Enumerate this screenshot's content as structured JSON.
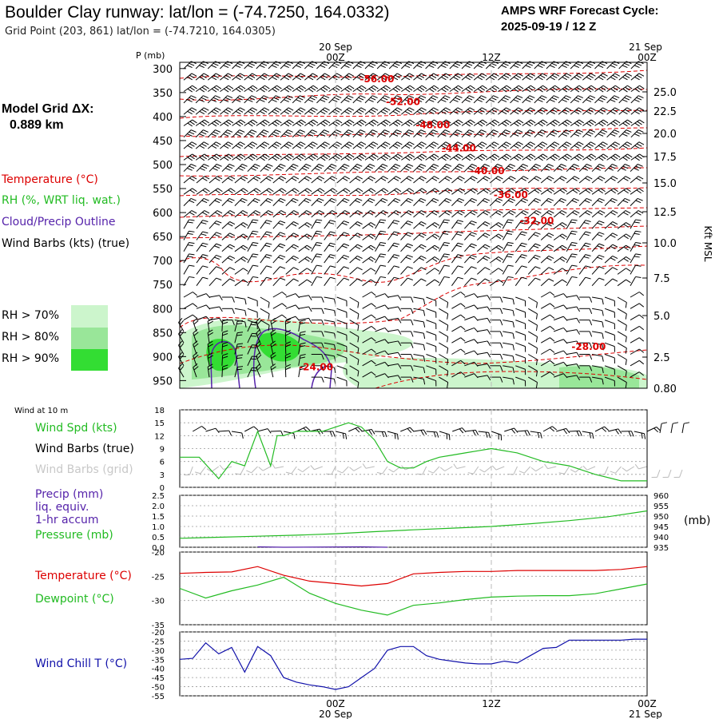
{
  "header": {
    "title": "Boulder Clay runway:  lat/lon = (-74.7250, 164.0332)",
    "subtitle": "Grid Point (203, 861) lat/lon = (-74.7210, 164.0305)",
    "cycle_line1": "AMPS WRF Forecast Cycle:",
    "cycle_line2": "2025-09-19 / 12  Z"
  },
  "legend": {
    "model_grid_label": "Model Grid ΔX:",
    "model_grid_value": "0.889 km",
    "temperature": "Temperature (°C)",
    "rh": "RH (%, WRT liq. wat.)",
    "cloud": "Cloud/Precip Outline",
    "barbs": "Wind Barbs (kts) (true)",
    "rh70": "RH > 70%",
    "rh80": "RH > 80%",
    "rh90": "RH > 90%"
  },
  "colors": {
    "temp": "#dd0000",
    "rh": "#22bb22",
    "cloud": "#5522aa",
    "dew": "#22bb22",
    "chill": "#1111aa",
    "rh70": "#ccf5cc",
    "rh80": "#99e699",
    "rh90": "#33dd33"
  },
  "time_axis": {
    "top_date_left": "20 Sep",
    "top_date_right": "21 Sep",
    "ticks": [
      "00Z",
      "12Z",
      "00Z"
    ],
    "bottom_date_left": "20 Sep",
    "bottom_date_right": "21 Sep"
  },
  "chart_data": [
    {
      "type": "line",
      "name": "cross-section",
      "title": "Time-height cross section",
      "ylabel": "P (mb)",
      "y2label": "Kft MSL",
      "pressure_levels": [
        "300",
        "350",
        "400",
        "450",
        "500",
        "550",
        "600",
        "650",
        "700",
        "750",
        "800",
        "850",
        "900",
        "950"
      ],
      "height_levels": [
        "25.0",
        "22.5",
        "20.0",
        "17.5",
        "15.0",
        "12.5",
        "10.0",
        "7.5",
        "5.0",
        "2.5",
        "0.80"
      ],
      "isotherm_labels": [
        {
          "value": "-56.00",
          "hour": 3.2,
          "p": 320
        },
        {
          "value": "-52.00",
          "hour": 5.2,
          "p": 368
        },
        {
          "value": "-48.00",
          "hour": 7.5,
          "p": 416
        },
        {
          "value": "-44.00",
          "hour": 9.5,
          "p": 464
        },
        {
          "value": "-40.00",
          "hour": 11.7,
          "p": 512
        },
        {
          "value": "-36.00",
          "hour": 13.5,
          "p": 562
        },
        {
          "value": "-32.00",
          "hour": 15.5,
          "p": 616
        },
        {
          "value": "-28.00",
          "hour": 19.5,
          "p": 878
        },
        {
          "value": "-24.00",
          "hour": -1.5,
          "p": 920
        }
      ]
    },
    {
      "type": "line",
      "name": "wind-10m",
      "panel_title": "Wind at 10 m",
      "labels": {
        "speed": "Wind Spd (kts)",
        "barbs_true": "Wind Barbs (true)",
        "barbs_grid": "Wind Barbs (grid)"
      },
      "ylim": [
        0,
        18
      ],
      "yticks": [
        "0",
        "3",
        "6",
        "9",
        "12",
        "15",
        "18"
      ],
      "x_hours": [
        -12,
        -10.5,
        -9,
        -8,
        -7,
        -6,
        -5,
        -4.5,
        -4,
        -3,
        -2,
        -1,
        0,
        1,
        2,
        3,
        4,
        5,
        6,
        7,
        8,
        9,
        10,
        11,
        12,
        14,
        16,
        18,
        20,
        22,
        24
      ],
      "speed": [
        7,
        7,
        2,
        6,
        5,
        13,
        5,
        12,
        12,
        13,
        13,
        13,
        14,
        15,
        14,
        11,
        6,
        4.5,
        4.5,
        6,
        7,
        7.5,
        8,
        8.5,
        9,
        8,
        6,
        5,
        3,
        1.5,
        1.5
      ]
    },
    {
      "type": "line",
      "name": "precip-pressure",
      "labels": {
        "precip": "Precip (mm)",
        "liq": "liq. equiv.",
        "accum": "1-hr accum",
        "pressure": "Pressure (mb)",
        "unit": "(mb)"
      },
      "ylim_precip": [
        0,
        2.5
      ],
      "yticks_precip": [
        "0.0",
        "0.5",
        "1.0",
        "1.5",
        "2.0",
        "2.5"
      ],
      "ylim_pressure": [
        935,
        960
      ],
      "yticks_pressure": [
        "935",
        "940",
        "945",
        "950",
        "955",
        "960"
      ],
      "x_hours": [
        -12,
        -9,
        -6,
        -3,
        0,
        3,
        6,
        9,
        12,
        15,
        18,
        21,
        24
      ],
      "pressure": [
        939.3,
        939.8,
        940.3,
        940.8,
        941.5,
        942.5,
        943.4,
        944.2,
        945.0,
        946.3,
        947.8,
        949.7,
        952.5
      ],
      "precip_x_hours": [
        -6,
        -4,
        2,
        4
      ],
      "precip": [
        0.02,
        0.0,
        0.02,
        0.0
      ]
    },
    {
      "type": "line",
      "name": "temp-dew",
      "labels": {
        "temp": "Temperature (°C)",
        "dew": "Dewpoint (°C)"
      },
      "ylim": [
        -35,
        -20
      ],
      "yticks": [
        "-20",
        "-25",
        "-30",
        "-35"
      ],
      "x_hours": [
        -12,
        -10,
        -8,
        -6,
        -4,
        -2,
        0,
        2,
        4,
        6,
        8,
        10,
        12,
        14,
        16,
        18,
        20,
        22,
        24
      ],
      "temperature": [
        -24.4,
        -24.2,
        -24.1,
        -23.0,
        -24.8,
        -26,
        -26.5,
        -27,
        -26.5,
        -24.5,
        -24.2,
        -24.0,
        -24.0,
        -23.8,
        -23.8,
        -23.8,
        -23.8,
        -23.6,
        -23.0
      ],
      "dewpoint": [
        -27.5,
        -29.5,
        -28,
        -26.8,
        -25.2,
        -28.5,
        -30.6,
        -32,
        -33,
        -31,
        -30.5,
        -29.8,
        -29.3,
        -29.1,
        -29.0,
        -29.0,
        -28.6,
        -27.6,
        -26.6
      ]
    },
    {
      "type": "line",
      "name": "wind-chill",
      "labels": {
        "chill": "Wind Chill T (°C)"
      },
      "ylim": [
        -55,
        -20
      ],
      "yticks": [
        "-20",
        "-25",
        "-30",
        "-35",
        "-40",
        "-45",
        "-50",
        "-55"
      ],
      "x_hours": [
        -12,
        -11,
        -10,
        -9,
        -8,
        -7,
        -6,
        -5,
        -4,
        -3,
        -2,
        -1,
        0,
        1,
        2,
        3,
        4,
        5,
        6,
        7,
        8,
        9,
        10,
        11,
        12,
        13,
        14,
        15,
        16,
        17,
        18,
        19,
        20,
        21,
        22,
        23,
        24
      ],
      "chill": [
        -35,
        -34.5,
        -26,
        -32,
        -28.5,
        -42,
        -28,
        -33,
        -45,
        -47.5,
        -49,
        -50,
        -51.5,
        -50,
        -45,
        -40,
        -30,
        -28,
        -28,
        -33,
        -35,
        -36,
        -37,
        -37.5,
        -37.5,
        -36,
        -37,
        -33,
        -29,
        -28.5,
        -24.5,
        -24.5,
        -24.5,
        -24.5,
        -24.5,
        -24,
        -24
      ]
    }
  ]
}
